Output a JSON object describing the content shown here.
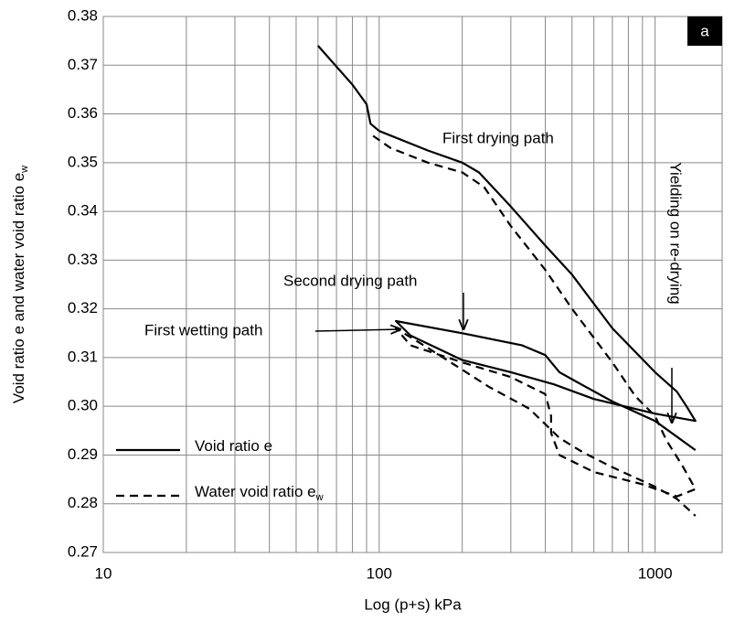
{
  "chart_data": {
    "type": "line",
    "xlabel": "Log (p+s) kPa",
    "ylabel": "Void ratio e and water void ratio e",
    "ylabel_sub": "w",
    "xscale": "log",
    "xlim": [
      10,
      1750
    ],
    "xticks": [
      10,
      100,
      1000
    ],
    "x_minor_grid": [
      20,
      30,
      40,
      50,
      60,
      70,
      80,
      90,
      200,
      300,
      400,
      500,
      600,
      700,
      800,
      900
    ],
    "ylim": [
      0.27,
      0.38
    ],
    "yticks": [
      0.27,
      0.28,
      0.29,
      {
        "value": 0.3,
        "label": "0.30"
      },
      0.31,
      0.32,
      0.33,
      0.34,
      0.35,
      0.36,
      0.37,
      0.38
    ],
    "grid": true,
    "legend": "lower left",
    "panel_label": "a",
    "annotations": [
      "First drying path",
      "Second drying path",
      "First wetting path",
      "Yielding on re-drying"
    ],
    "series": [
      {
        "name": "Void ratio e",
        "color": "#000000",
        "dash": false,
        "x": [
          60,
          80,
          90,
          93,
          100,
          150,
          200,
          230,
          300,
          400,
          500,
          700,
          1000,
          1200,
          1300,
          1400,
          1000,
          600,
          430,
          300,
          200,
          130,
          115,
          200,
          330,
          400,
          450,
          520,
          700,
          1000,
          1400
        ],
        "values": [
          0.374,
          0.366,
          0.362,
          0.358,
          0.3565,
          0.3525,
          0.35,
          0.348,
          0.341,
          0.333,
          0.327,
          0.316,
          0.307,
          0.303,
          0.3,
          0.297,
          0.2985,
          0.3015,
          0.3045,
          0.307,
          0.3095,
          0.3145,
          0.3175,
          0.315,
          0.3125,
          0.3105,
          0.307,
          0.305,
          0.301,
          0.297,
          0.291
        ]
      },
      {
        "name": "Water void ratio e",
        "name_sub": "w",
        "color": "#000000",
        "dash": true,
        "x": [
          95,
          110,
          150,
          200,
          240,
          300,
          400,
          500,
          700,
          850,
          1000,
          1100,
          1250,
          1400,
          1200,
          900,
          600,
          450,
          420,
          420,
          400,
          300,
          200,
          130,
          115,
          150,
          200,
          250,
          350,
          450,
          550,
          700,
          1000,
          1200,
          1400
        ],
        "values": [
          0.3555,
          0.353,
          0.35,
          0.348,
          0.345,
          0.337,
          0.328,
          0.32,
          0.309,
          0.302,
          0.298,
          0.293,
          0.288,
          0.283,
          0.2815,
          0.284,
          0.2865,
          0.29,
          0.2945,
          0.298,
          0.3025,
          0.306,
          0.309,
          0.3125,
          0.316,
          0.312,
          0.3075,
          0.304,
          0.2995,
          0.2935,
          0.2905,
          0.2875,
          0.2835,
          0.281,
          0.2775
        ]
      }
    ]
  }
}
